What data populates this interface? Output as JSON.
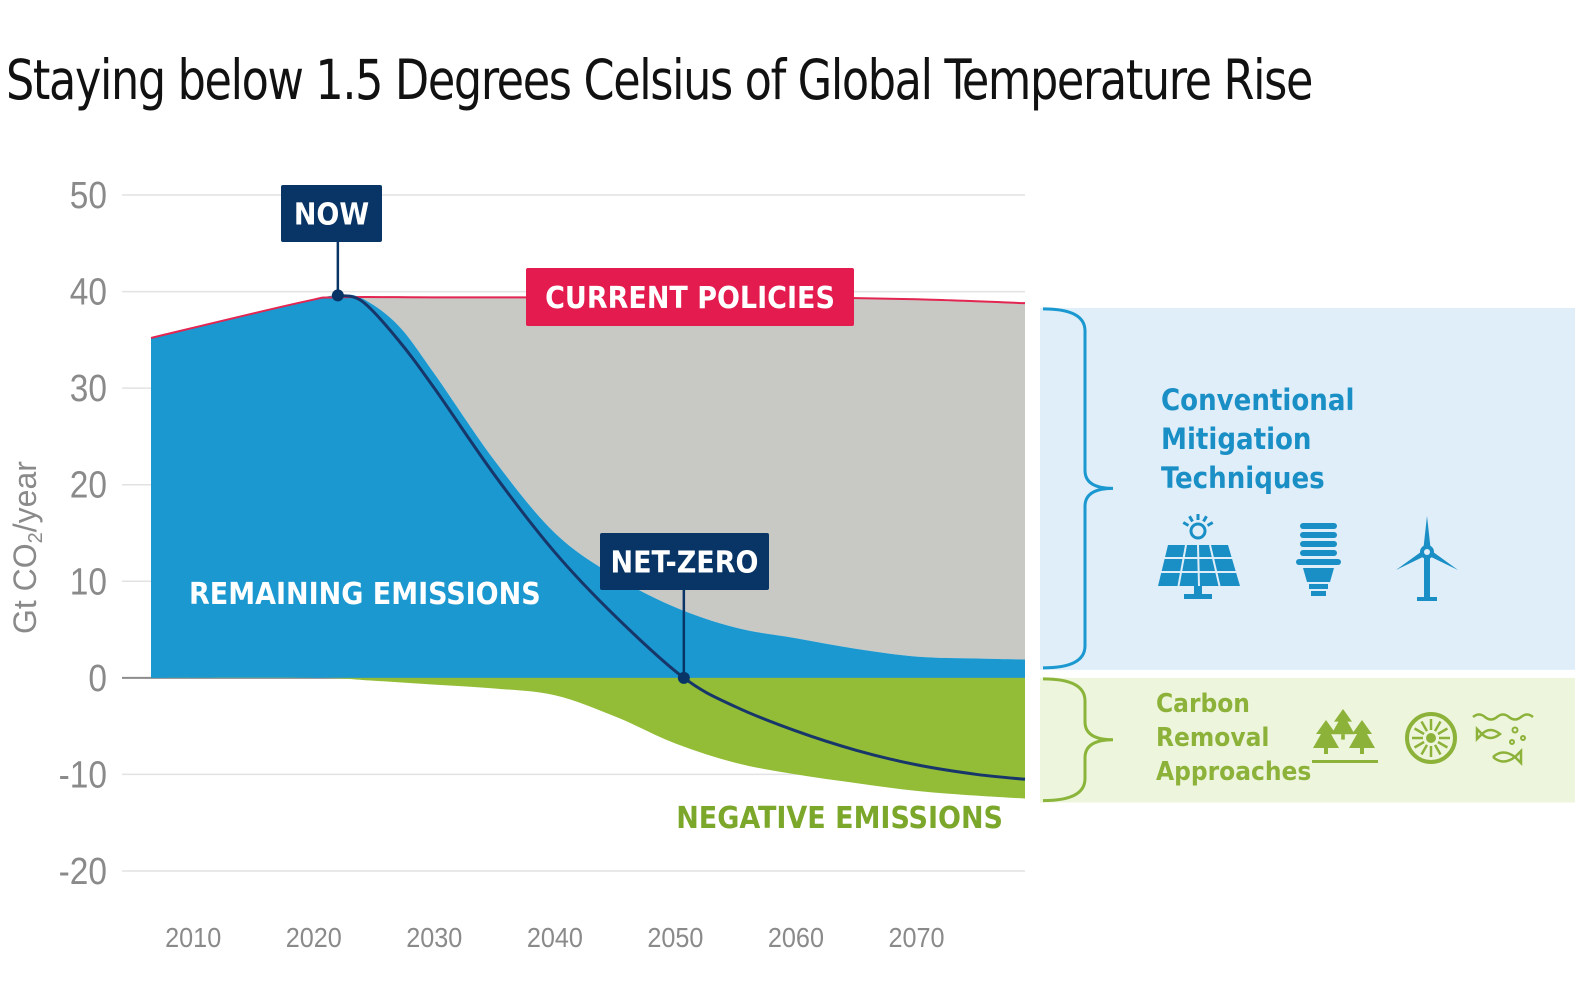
{
  "title": "Staying below 1.5 Degrees Celsius of Global Temperature Rise",
  "chart_data": {
    "type": "area",
    "title": "Staying below 1.5 Degrees Celsius of Global Temperature Rise",
    "xlabel": "",
    "ylabel": "Gt CO2/year",
    "xlim": [
      2006.5,
      2079
    ],
    "ylim": [
      -20,
      50
    ],
    "x_ticks": [
      2010,
      2020,
      2030,
      2040,
      2050,
      2060,
      2070
    ],
    "y_ticks": [
      50,
      40,
      30,
      20,
      10,
      0,
      -10,
      -20
    ],
    "grid": true,
    "series": [
      {
        "key": "current_policies",
        "name": "CURRENT POLICIES",
        "x": [
          2006.5,
          2019,
          2022,
          2030,
          2040,
          2050,
          2060,
          2070,
          2079
        ],
        "y": [
          35.2,
          38.9,
          39.4,
          39.4,
          39.4,
          39.4,
          39.4,
          39.2,
          38.8
        ]
      },
      {
        "key": "remaining_emissions",
        "name": "REMAINING EMISSIONS",
        "x": [
          2006.5,
          2019,
          2022,
          2024,
          2027,
          2030,
          2035,
          2040,
          2045,
          2050,
          2055,
          2060,
          2065,
          2070,
          2075,
          2079
        ],
        "y": [
          35.2,
          38.9,
          39.6,
          39.3,
          36.5,
          31.5,
          22.5,
          15.0,
          10.5,
          7.3,
          5.2,
          4.1,
          3.0,
          2.2,
          2.0,
          1.9
        ]
      },
      {
        "key": "negative_emissions",
        "name": "NEGATIVE EMISSIONS",
        "x": [
          2006.5,
          2020,
          2025,
          2030,
          2035,
          2040,
          2045,
          2050,
          2055,
          2060,
          2065,
          2070,
          2075,
          2079
        ],
        "y": [
          0,
          0,
          -0.3,
          -0.7,
          -1.1,
          -1.8,
          -4.0,
          -6.8,
          -8.8,
          -10.0,
          -10.9,
          -11.7,
          -12.2,
          -12.5
        ]
      },
      {
        "key": "net_emissions",
        "x": [
          2022,
          2024,
          2027,
          2030,
          2035,
          2040,
          2045,
          2050.7,
          2055,
          2060,
          2065,
          2070,
          2075,
          2079
        ],
        "y": [
          39.6,
          39.0,
          35.0,
          30.0,
          21.0,
          13.0,
          6.4,
          0,
          -3.0,
          -5.5,
          -7.5,
          -9.0,
          -10.0,
          -10.5
        ]
      }
    ],
    "annotations": [
      {
        "label": "NOW",
        "x": 2022,
        "y": 39.6
      },
      {
        "label": "NET-ZERO",
        "x": 2050.7,
        "y": 0
      }
    ],
    "side_panel": [
      {
        "label": "Conventional Mitigation Techniques",
        "range": [
          0,
          38
        ]
      },
      {
        "label": "Carbon Removal Approaches",
        "range": [
          -12.5,
          0
        ]
      }
    ],
    "colors": {
      "remaining": "#1b98d0",
      "gap": "#c8c8c4",
      "negative": "#93bd36",
      "policy_line": "#e32551",
      "net_line": "#17366a",
      "navy": "#083566",
      "red": "#e31b4f",
      "cyan_text": "#1a8fc6",
      "panel_blue": "#dfeef9",
      "panel_green": "#eef5dd",
      "green_text": "#7ba72b"
    }
  },
  "labels": {
    "now": "NOW",
    "current_policies": "CURRENT POLICIES",
    "net_zero": "NET-ZERO",
    "remaining": "REMAINING EMISSIONS",
    "negative": "NEGATIVE EMISSIONS",
    "ylabel_main": "Gt CO",
    "ylabel_sub": "2",
    "ylabel_tail": "/year",
    "conventional": [
      "Conventional",
      "Mitigation",
      "Techniques"
    ],
    "carbon_removal": [
      "Carbon",
      "Removal",
      "Approaches"
    ]
  },
  "icons": {
    "conventional": [
      "solar-panel-icon",
      "light-bulb-icon",
      "wind-turbine-icon"
    ],
    "carbon_removal": [
      "trees-icon",
      "mineral-disk-icon",
      "ocean-fish-icon"
    ]
  }
}
